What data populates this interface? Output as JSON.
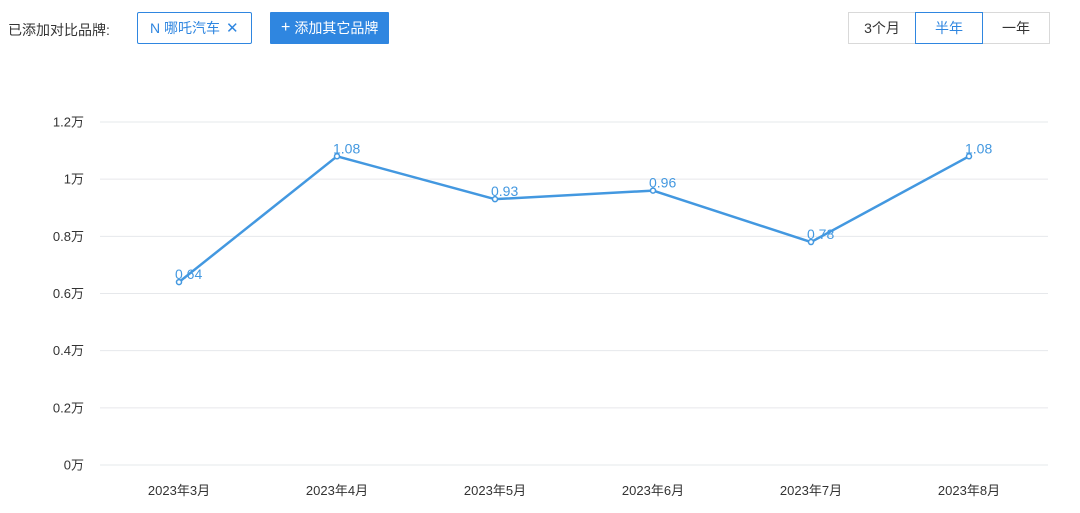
{
  "toolbar": {
    "label": "已添加对比品牌:",
    "brand_chip": "N 哪吒汽车",
    "brand_chip_close": "✕",
    "add_brand": "添加其它品牌",
    "add_brand_plus": "+"
  },
  "range_options": [
    {
      "label": "3个月",
      "active": false
    },
    {
      "label": "半年",
      "active": true
    },
    {
      "label": "一年",
      "active": false
    }
  ],
  "colors": {
    "accent": "#2f86e0",
    "series": "#4398e0",
    "grid": "#e6e8eb"
  },
  "chart_data": {
    "type": "line",
    "categories": [
      "2023年3月",
      "2023年4月",
      "2023年5月",
      "2023年6月",
      "2023年7月",
      "2023年8月"
    ],
    "series": [
      {
        "values": [
          0.64,
          1.08,
          0.93,
          0.96,
          0.78,
          1.08
        ],
        "data_labels": [
          "0.64",
          "1.08",
          "0.93",
          "0.96",
          "0.78",
          "1.08"
        ]
      }
    ],
    "y_ticks": [
      {
        "value": 0,
        "label": "0万"
      },
      {
        "value": 0.2,
        "label": "0.2万"
      },
      {
        "value": 0.4,
        "label": "0.4万"
      },
      {
        "value": 0.6,
        "label": "0.6万"
      },
      {
        "value": 0.8,
        "label": "0.8万"
      },
      {
        "value": 1.0,
        "label": "1万"
      },
      {
        "value": 1.2,
        "label": "1.2万"
      }
    ],
    "ylim": [
      0,
      1.2
    ],
    "grid": true,
    "legend": "none"
  }
}
